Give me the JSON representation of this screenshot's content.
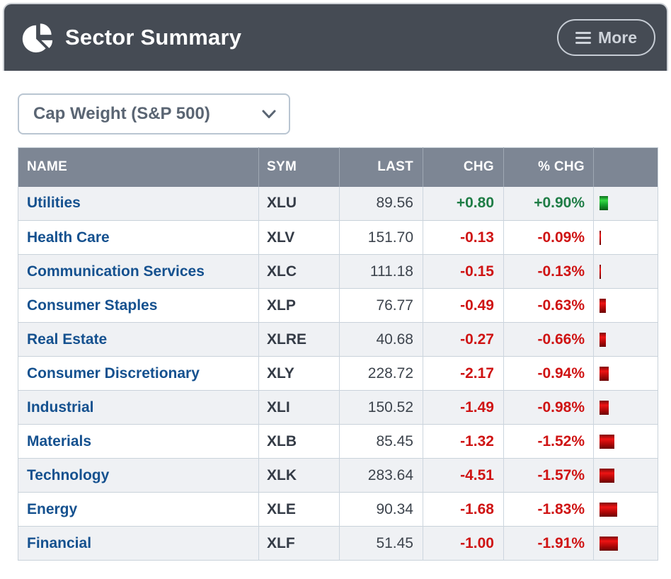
{
  "widget": {
    "title": "Sector Summary",
    "more_label": "More",
    "dropdown_value": "Cap Weight (S&P 500)"
  },
  "colors": {
    "titlebar_bg": "#454b54",
    "thead_bg": "#7d8694",
    "row_alt_bg": "#eff1f4",
    "name_link": "#15518f",
    "positive": "#1f7d46",
    "negative": "#cf1313",
    "bar_green": "#39da47",
    "bar_red": "#ee1414"
  },
  "table": {
    "columns": [
      "NAME",
      "SYM",
      "LAST",
      "CHG",
      "% CHG",
      ""
    ],
    "rows": [
      {
        "name": "Utilities",
        "sym": "XLU",
        "last": "89.56",
        "chg": "+0.80",
        "pct": "+0.90%",
        "pct_value": 0.9,
        "direction": "up"
      },
      {
        "name": "Health Care",
        "sym": "XLV",
        "last": "151.70",
        "chg": "-0.13",
        "pct": "-0.09%",
        "pct_value": -0.09,
        "direction": "down"
      },
      {
        "name": "Communication Services",
        "sym": "XLC",
        "last": "111.18",
        "chg": "-0.15",
        "pct": "-0.13%",
        "pct_value": -0.13,
        "direction": "down"
      },
      {
        "name": "Consumer Staples",
        "sym": "XLP",
        "last": "76.77",
        "chg": "-0.49",
        "pct": "-0.63%",
        "pct_value": -0.63,
        "direction": "down"
      },
      {
        "name": "Real Estate",
        "sym": "XLRE",
        "last": "40.68",
        "chg": "-0.27",
        "pct": "-0.66%",
        "pct_value": -0.66,
        "direction": "down"
      },
      {
        "name": "Consumer Discretionary",
        "sym": "XLY",
        "last": "228.72",
        "chg": "-2.17",
        "pct": "-0.94%",
        "pct_value": -0.94,
        "direction": "down"
      },
      {
        "name": "Industrial",
        "sym": "XLI",
        "last": "150.52",
        "chg": "-1.49",
        "pct": "-0.98%",
        "pct_value": -0.98,
        "direction": "down"
      },
      {
        "name": "Materials",
        "sym": "XLB",
        "last": "85.45",
        "chg": "-1.32",
        "pct": "-1.52%",
        "pct_value": -1.52,
        "direction": "down"
      },
      {
        "name": "Technology",
        "sym": "XLK",
        "last": "283.64",
        "chg": "-4.51",
        "pct": "-1.57%",
        "pct_value": -1.57,
        "direction": "down"
      },
      {
        "name": "Energy",
        "sym": "XLE",
        "last": "90.34",
        "chg": "-1.68",
        "pct": "-1.83%",
        "pct_value": -1.83,
        "direction": "down"
      },
      {
        "name": "Financial",
        "sym": "XLF",
        "last": "51.45",
        "chg": "-1.00",
        "pct": "-1.91%",
        "pct_value": -1.91,
        "direction": "down"
      }
    ]
  }
}
